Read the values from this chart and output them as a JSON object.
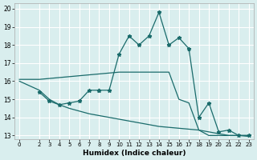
{
  "xlabel": "Humidex (Indice chaleur)",
  "xlim": [
    -0.5,
    23.5
  ],
  "ylim": [
    12.8,
    20.3
  ],
  "yticks": [
    13,
    14,
    15,
    16,
    17,
    18,
    19,
    20
  ],
  "xticks": [
    0,
    2,
    3,
    4,
    5,
    6,
    7,
    8,
    9,
    10,
    11,
    12,
    13,
    14,
    15,
    16,
    17,
    18,
    19,
    20,
    21,
    22,
    23
  ],
  "bg_color": "#d9eeee",
  "grid_color": "#ffffff",
  "line_color": "#1a6b6b",
  "curve_x": [
    8,
    9,
    10,
    11,
    12,
    13,
    14,
    15,
    16,
    17,
    18,
    19,
    20,
    21,
    22,
    23
  ],
  "curve_y": [
    15.5,
    15.5,
    17.5,
    18.5,
    18.0,
    18.5,
    19.8,
    18.0,
    18.4,
    17.8,
    14.0,
    14.8,
    13.2,
    13.3,
    13.0,
    13.0
  ],
  "flat_x": [
    0,
    2,
    3,
    4,
    5,
    6,
    7,
    8,
    9,
    10,
    11,
    12,
    13,
    14,
    15,
    16,
    17,
    18,
    19,
    20,
    21,
    22,
    23
  ],
  "flat_y": [
    16.1,
    16.1,
    16.15,
    16.2,
    16.25,
    16.3,
    16.35,
    16.4,
    16.45,
    16.5,
    16.5,
    16.5,
    16.5,
    16.5,
    16.5,
    15.0,
    14.8,
    13.3,
    13.0,
    13.0,
    13.0,
    13.0,
    13.0
  ],
  "diag_x": [
    0,
    2,
    3,
    4,
    5,
    6,
    7,
    8,
    9,
    10,
    11,
    12,
    13,
    14,
    15,
    16,
    17,
    18,
    19,
    20,
    21,
    22,
    23
  ],
  "diag_y": [
    16.0,
    15.5,
    15.0,
    14.7,
    14.5,
    14.35,
    14.2,
    14.1,
    14.0,
    13.9,
    13.8,
    13.7,
    13.6,
    13.5,
    13.45,
    13.4,
    13.35,
    13.3,
    13.2,
    13.1,
    13.0,
    13.0,
    12.95
  ],
  "branch_x": [
    2,
    3,
    4,
    5,
    6,
    7,
    8
  ],
  "branch_y": [
    15.4,
    14.9,
    14.7,
    14.8,
    14.9,
    15.5,
    15.5
  ]
}
